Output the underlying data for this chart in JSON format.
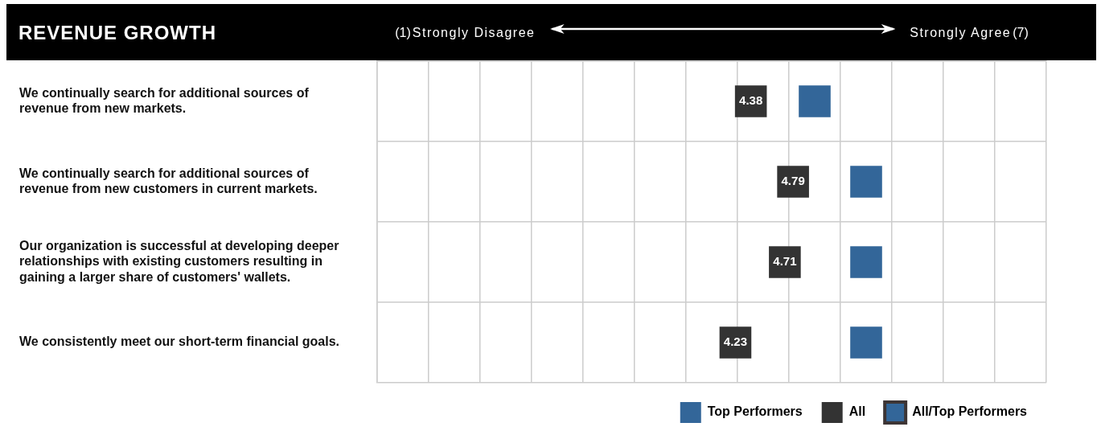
{
  "chart_data": {
    "type": "scatter",
    "orientation": "horizontal",
    "title": "REVENUE GROWTH",
    "annotations": [
      "Strongly Disagree",
      "Strongly Agree"
    ],
    "categories": [
      "We continually search for additional sources of revenue from new markets.",
      "We continually search for additional sources of revenue from new customers in current markets.",
      "Our organization is successful at developing deeper relationships with existing customers resulting in gaining a larger share of customers' wallets.",
      "We consistently meet our short-term financial goals."
    ],
    "series": [
      {
        "name": "Top Performers",
        "color": "#336699",
        "values": [
          5.0,
          5.5,
          5.5,
          5.5
        ]
      },
      {
        "name": "All",
        "color": "#333333",
        "values": [
          4.38,
          4.79,
          4.71,
          4.23
        ],
        "value_labels": [
          "4.38",
          "4.79",
          "4.71",
          "4.23"
        ]
      },
      {
        "name": "All/Top Performers",
        "color": "#3d3535",
        "values": [
          null,
          null,
          null,
          null
        ]
      }
    ],
    "xlim": [
      0.75,
      7.25
    ],
    "xticks": [
      {
        "value": 0.75,
        "label": null
      },
      {
        "value": 1,
        "label": "(1)"
      },
      {
        "value": 1.25,
        "label": null
      },
      {
        "value": 1.75,
        "label": null
      },
      {
        "value": 2.25,
        "label": null
      },
      {
        "value": 2.75,
        "label": null
      },
      {
        "value": 3.25,
        "label": null
      },
      {
        "value": 3.75,
        "label": null
      },
      {
        "value": 4.25,
        "label": null
      },
      {
        "value": 4.75,
        "label": null
      },
      {
        "value": 5.25,
        "label": null
      },
      {
        "value": 5.75,
        "label": null
      },
      {
        "value": 6.25,
        "label": null
      },
      {
        "value": 6.75,
        "label": null
      },
      {
        "value": 7,
        "label": "(7)"
      },
      {
        "value": 7.25,
        "label": null
      }
    ],
    "grid": true,
    "marker": "square",
    "legend": "bottom right"
  }
}
